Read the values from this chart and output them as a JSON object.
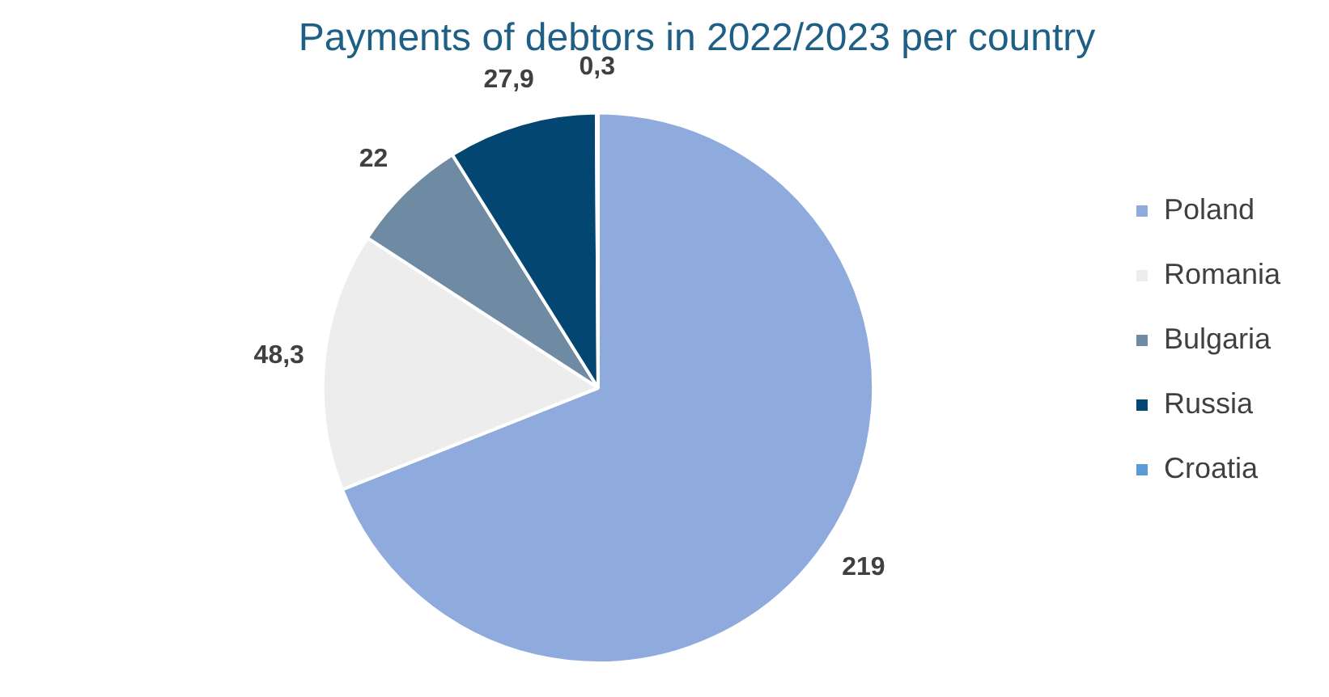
{
  "chart_data": {
    "type": "pie",
    "title": "Payments of debtors in 2022/2023 per country",
    "categories": [
      "Poland",
      "Romania",
      "Bulgaria",
      "Russia",
      "Croatia"
    ],
    "values": [
      219,
      48.3,
      22,
      27.9,
      0.3
    ],
    "colors": [
      "#8faadc",
      "#ededed",
      "#6f8ba4",
      "#044672",
      "#5b9bd5"
    ],
    "value_labels": [
      "219",
      "48,3",
      "22",
      "27,9",
      "0,3"
    ],
    "legend": "right"
  }
}
